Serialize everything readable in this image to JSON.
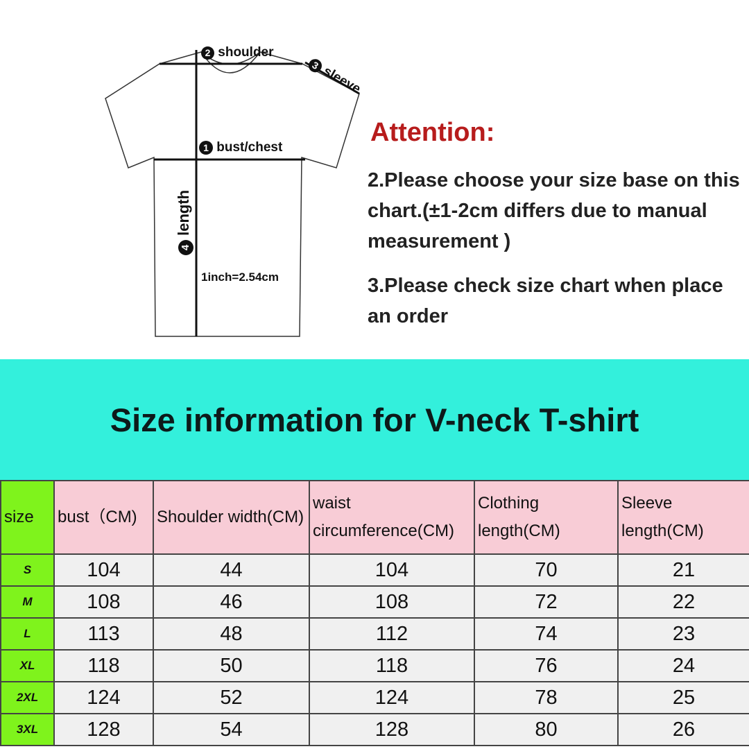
{
  "diagram": {
    "labels": {
      "shoulder": "shoulder",
      "sleeve": "sleeve",
      "bust": "bust/chest",
      "length": "length",
      "conversion": "1inch=2.54cm"
    },
    "markers": {
      "bust": "1",
      "shoulder": "2",
      "sleeve": "3",
      "length": "4"
    }
  },
  "attention": {
    "title": "Attention:",
    "notes": [
      "2.Please choose your size base on this chart.(±1-2cm differs due to manual measurement )",
      "3.Please check size chart when place an order"
    ]
  },
  "banner": {
    "title": "Size information for V-neck T-shirt"
  },
  "table": {
    "headers": [
      "size",
      "bust（CM)",
      "Shoulder width(CM)",
      "waist circumference(CM)",
      "Clothing length(CM)",
      "Sleeve length(CM)"
    ],
    "rows": [
      [
        "S",
        "104",
        "44",
        "104",
        "70",
        "21"
      ],
      [
        "M",
        "108",
        "46",
        "108",
        "72",
        "22"
      ],
      [
        "L",
        "113",
        "48",
        "112",
        "74",
        "23"
      ],
      [
        "XL",
        "118",
        "50",
        "118",
        "76",
        "24"
      ],
      [
        "2XL",
        "124",
        "52",
        "124",
        "78",
        "25"
      ],
      [
        "3XL",
        "128",
        "54",
        "128",
        "80",
        "26"
      ]
    ]
  },
  "colors": {
    "banner": "#33f0dc",
    "size_column": "#7ff31c",
    "header": "#f8ccd6",
    "attention": "#b71c1c"
  }
}
